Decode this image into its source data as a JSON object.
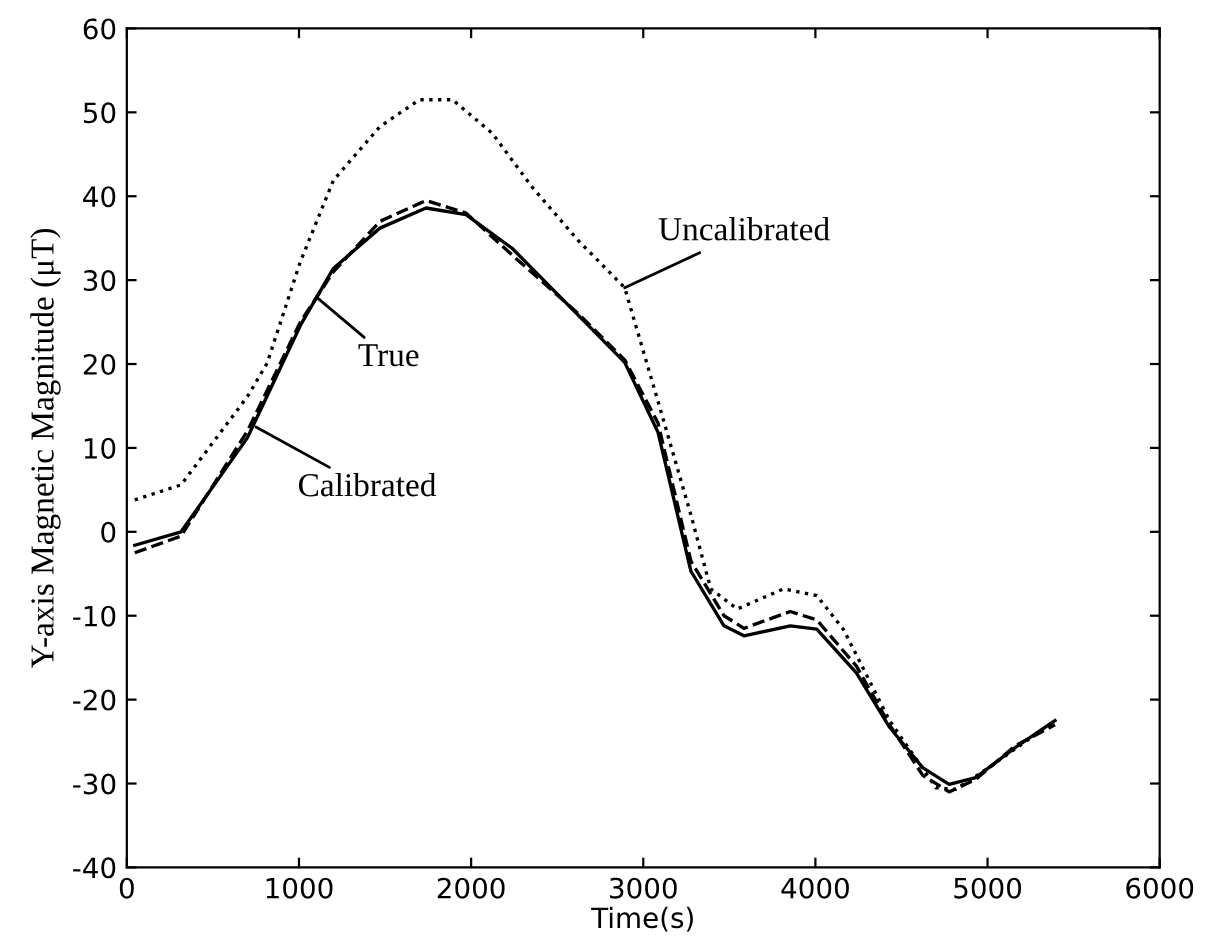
{
  "chart_data": {
    "type": "line",
    "xlabel": "Time(s)",
    "ylabel": "Y-axis Magnetic Magnitude (μT)",
    "xlim": [
      0,
      6000
    ],
    "ylim": [
      -40,
      60
    ],
    "xticks": [
      0,
      1000,
      2000,
      3000,
      4000,
      5000,
      6000
    ],
    "yticks": [
      -40,
      -30,
      -20,
      -10,
      0,
      10,
      20,
      30,
      40,
      50,
      60
    ],
    "grid": false,
    "marker": "none",
    "series": [
      {
        "color": "#000000",
        "line_style": "solid",
        "x": [
          46,
          315,
          700,
          1008,
          1200,
          1470,
          1738,
          1970,
          2238,
          2623,
          2892,
          3085,
          3277,
          3469,
          3585,
          3854,
          4008,
          4238,
          4431,
          4623,
          4777,
          4931,
          5162,
          5392
        ],
        "values": [
          -1.6,
          0,
          11.2,
          24.6,
          31.4,
          36.2,
          38.6,
          37.8,
          33.8,
          25.8,
          20.2,
          11.9,
          -4.7,
          -11.2,
          -12.4,
          -11.2,
          -11.6,
          -16.8,
          -23.3,
          -28.1,
          -30.1,
          -29.3,
          -25.7,
          -22.5
        ]
      },
      {
        "color": "#000000",
        "line_style": "dashed",
        "x": [
          46,
          315,
          700,
          1008,
          1200,
          1470,
          1738,
          1970,
          2238,
          2623,
          2892,
          3085,
          3277,
          3469,
          3585,
          3854,
          4008,
          4238,
          4431,
          4623,
          4777,
          4931,
          5162,
          5392
        ],
        "values": [
          -2.5,
          -0.5,
          12,
          25,
          31,
          37,
          39.5,
          38,
          33,
          26,
          20.5,
          13,
          -3.5,
          -10,
          -11.5,
          -9.5,
          -10.5,
          -16,
          -23,
          -29,
          -31,
          -29.5,
          -25.5,
          -23
        ]
      },
      {
        "color": "#000000",
        "line_style": "dotted",
        "x": [
          46,
          315,
          700,
          815,
          1008,
          1200,
          1470,
          1700,
          1892,
          2123,
          2354,
          2623,
          2892,
          3085,
          3277,
          3392,
          3546,
          3815,
          4008,
          4162,
          4431,
          4700,
          4815,
          5008,
          5392
        ],
        "values": [
          3.8,
          5.6,
          16.1,
          20.1,
          32.2,
          41.9,
          48.3,
          51.5,
          51.5,
          47.5,
          41.1,
          34.7,
          29.1,
          15.6,
          2.0,
          -6.8,
          -9.2,
          -6.8,
          -7.6,
          -11.6,
          -22.5,
          -30.5,
          -30.7,
          -28.1,
          -22.5
        ]
      }
    ],
    "annotations": [
      {
        "text": "Uncalibrated",
        "x": 2892,
        "y": 29.1
      },
      {
        "text": "True",
        "x": 1100,
        "y": 28
      },
      {
        "text": "Calibrated",
        "x": 750,
        "y": 12.5
      }
    ]
  }
}
